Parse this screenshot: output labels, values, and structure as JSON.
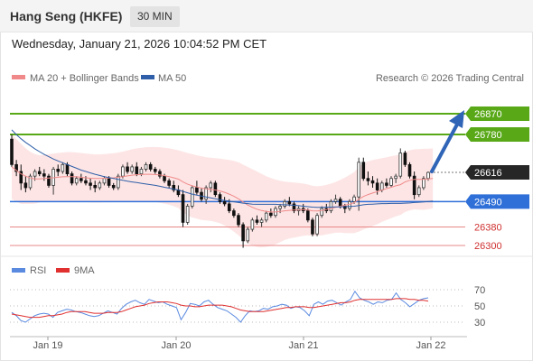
{
  "header": {
    "title": "Hang Seng (HKFE)",
    "interval": "30 MIN"
  },
  "datetime": "Wednesday, January 21, 2026 10:04:52 PM CET",
  "colors": {
    "up": "#3a3a3a",
    "down": "#111111",
    "bb": "#fde0e0",
    "ma20": "#f08a8a",
    "ma50": "#2f5fa8",
    "resistance": "#58a818",
    "support": "#2f6fd8",
    "minor_support": "#e88888",
    "arrow": "#2f64b6",
    "rsi": "#5a8ae0",
    "rsi_ma": "#e03030"
  },
  "legend": {
    "bb_label": "MA 20 + Bollinger Bands",
    "ma50_label": "MA 50",
    "credit": "Research © 2026 Trading Central",
    "rsi_label": "RSI",
    "rsi_ma_label": "9MA"
  },
  "chart_data": [
    {
      "type": "candlestick",
      "ylim": [
        26260,
        26900
      ],
      "x_ticks": [
        "Jan 19",
        "Jan 20",
        "Jan 21",
        "Jan 22"
      ],
      "levels": [
        {
          "label": "26870",
          "value": 26870,
          "kind": "resistance"
        },
        {
          "label": "26780",
          "value": 26780,
          "kind": "resistance"
        },
        {
          "label": "26616",
          "value": 26616,
          "kind": "last"
        },
        {
          "label": "26490",
          "value": 26490,
          "kind": "support"
        },
        {
          "label": "26380",
          "value": 26380,
          "kind": "minor_support"
        },
        {
          "label": "26300",
          "value": 26300,
          "kind": "minor_support"
        }
      ],
      "candles": [
        [
          26760,
          26780,
          26640,
          26650
        ],
        [
          26650,
          26670,
          26600,
          26620
        ],
        [
          26620,
          26650,
          26540,
          26570
        ],
        [
          26570,
          26600,
          26530,
          26550
        ],
        [
          26550,
          26610,
          26540,
          26600
        ],
        [
          26600,
          26630,
          26580,
          26620
        ],
        [
          26620,
          26640,
          26600,
          26610
        ],
        [
          26610,
          26630,
          26580,
          26600
        ],
        [
          26600,
          26610,
          26550,
          26560
        ],
        [
          26560,
          26640,
          26520,
          26630
        ],
        [
          26630,
          26650,
          26600,
          26620
        ],
        [
          26620,
          26660,
          26610,
          26650
        ],
        [
          26650,
          26660,
          26600,
          26610
        ],
        [
          26610,
          26620,
          26560,
          26570
        ],
        [
          26570,
          26600,
          26560,
          26590
        ],
        [
          26590,
          26610,
          26570,
          26580
        ],
        [
          26580,
          26600,
          26560,
          26570
        ],
        [
          26570,
          26590,
          26540,
          26560
        ],
        [
          26560,
          26580,
          26530,
          26550
        ],
        [
          26550,
          26580,
          26540,
          26570
        ],
        [
          26570,
          26600,
          26560,
          26590
        ],
        [
          26590,
          26600,
          26550,
          26560
        ],
        [
          26560,
          26570,
          26540,
          26550
        ],
        [
          26550,
          26610,
          26540,
          26600
        ],
        [
          26600,
          26650,
          26590,
          26640
        ],
        [
          26640,
          26660,
          26610,
          26620
        ],
        [
          26620,
          26650,
          26610,
          26640
        ],
        [
          26640,
          26660,
          26600,
          26610
        ],
        [
          26610,
          26640,
          26600,
          26630
        ],
        [
          26630,
          26660,
          26620,
          26650
        ],
        [
          26650,
          26660,
          26620,
          26630
        ],
        [
          26630,
          26640,
          26610,
          26620
        ],
        [
          26620,
          26630,
          26590,
          26600
        ],
        [
          26600,
          26610,
          26570,
          26580
        ],
        [
          26580,
          26590,
          26550,
          26560
        ],
        [
          26560,
          26580,
          26530,
          26540
        ],
        [
          26540,
          26560,
          26510,
          26520
        ],
        [
          26520,
          26540,
          26380,
          26400
        ],
        [
          26400,
          26480,
          26390,
          26470
        ],
        [
          26470,
          26560,
          26460,
          26550
        ],
        [
          26550,
          26580,
          26520,
          26530
        ],
        [
          26530,
          26550,
          26490,
          26500
        ],
        [
          26500,
          26560,
          26480,
          26550
        ],
        [
          26550,
          26580,
          26530,
          26570
        ],
        [
          26570,
          26580,
          26510,
          26520
        ],
        [
          26520,
          26530,
          26480,
          26490
        ],
        [
          26490,
          26510,
          26470,
          26480
        ],
        [
          26480,
          26500,
          26440,
          26450
        ],
        [
          26450,
          26460,
          26420,
          26430
        ],
        [
          26430,
          26440,
          26380,
          26390
        ],
        [
          26390,
          26400,
          26290,
          26320
        ],
        [
          26320,
          26380,
          26310,
          26370
        ],
        [
          26370,
          26420,
          26360,
          26410
        ],
        [
          26410,
          26430,
          26390,
          26400
        ],
        [
          26400,
          26420,
          26380,
          26410
        ],
        [
          26410,
          26450,
          26400,
          26440
        ],
        [
          26440,
          26460,
          26420,
          26430
        ],
        [
          26430,
          26470,
          26420,
          26460
        ],
        [
          26460,
          26480,
          26440,
          26470
        ],
        [
          26470,
          26500,
          26460,
          26490
        ],
        [
          26490,
          26510,
          26470,
          26480
        ],
        [
          26480,
          26490,
          26440,
          26450
        ],
        [
          26450,
          26470,
          26430,
          26460
        ],
        [
          26460,
          26480,
          26440,
          26450
        ],
        [
          26450,
          26460,
          26400,
          26410
        ],
        [
          26410,
          26420,
          26340,
          26350
        ],
        [
          26350,
          26440,
          26340,
          26430
        ],
        [
          26430,
          26470,
          26420,
          26460
        ],
        [
          26460,
          26480,
          26440,
          26450
        ],
        [
          26450,
          26500,
          26440,
          26490
        ],
        [
          26490,
          26520,
          26480,
          26500
        ],
        [
          26500,
          26510,
          26460,
          26470
        ],
        [
          26470,
          26480,
          26440,
          26460
        ],
        [
          26460,
          26500,
          26450,
          26490
        ],
        [
          26490,
          26520,
          26480,
          26510
        ],
        [
          26510,
          26680,
          26450,
          26660
        ],
        [
          26660,
          26680,
          26580,
          26590
        ],
        [
          26590,
          26620,
          26560,
          26580
        ],
        [
          26580,
          26600,
          26550,
          26570
        ],
        [
          26570,
          26590,
          26520,
          26540
        ],
        [
          26540,
          26580,
          26530,
          26570
        ],
        [
          26570,
          26590,
          26550,
          26560
        ],
        [
          26560,
          26600,
          26550,
          26590
        ],
        [
          26590,
          26610,
          26570,
          26600
        ],
        [
          26600,
          26720,
          26590,
          26700
        ],
        [
          26700,
          26710,
          26640,
          26650
        ],
        [
          26650,
          26660,
          26590,
          26600
        ],
        [
          26600,
          26620,
          26500,
          26520
        ],
        [
          26520,
          26560,
          26510,
          26550
        ],
        [
          26550,
          26600,
          26540,
          26590
        ],
        [
          26590,
          26620,
          26580,
          26616
        ]
      ],
      "bollinger_mid": [
        26640,
        26625,
        26610,
        26600,
        26592,
        26588,
        26588,
        26590,
        26592,
        26593,
        26595,
        26597,
        26598,
        26598,
        26597,
        26595,
        26593,
        26591,
        26590,
        26590,
        26591,
        26592,
        26593,
        26595,
        26598,
        26601,
        26604,
        26606,
        26607,
        26608,
        26608,
        26607,
        26605,
        26602,
        26598,
        26593,
        26587,
        26575,
        26565,
        26558,
        26553,
        26548,
        26545,
        26543,
        26540,
        26536,
        26530,
        26522,
        26513,
        26502,
        26488,
        26475,
        26465,
        26457,
        26451,
        26447,
        26445,
        26445,
        26447,
        26450,
        26452,
        26453,
        26454,
        26455,
        26454,
        26450,
        26449,
        26451,
        26455,
        26460,
        26465,
        26470,
        26474,
        26479,
        26485,
        26500,
        26512,
        26520,
        26527,
        26533,
        26540,
        26546,
        26552,
        26558,
        26563,
        26575,
        26582,
        26586,
        26586,
        26586,
        26588,
        26590
      ],
      "bollinger_upper": [
        26780,
        26760,
        26740,
        26720,
        26705,
        26695,
        26690,
        26692,
        26695,
        26698,
        26700,
        26702,
        26704,
        26704,
        26702,
        26700,
        26698,
        26696,
        26694,
        26694,
        26695,
        26697,
        26699,
        26702,
        26706,
        26711,
        26716,
        26720,
        26723,
        26725,
        26726,
        26726,
        26725,
        26723,
        26720,
        26716,
        26712,
        26706,
        26700,
        26695,
        26690,
        26686,
        26682,
        26680,
        26678,
        26676,
        26673,
        26670,
        26666,
        26660,
        26650,
        26640,
        26630,
        26620,
        26610,
        26600,
        26592,
        26585,
        26580,
        26576,
        26574,
        26572,
        26570,
        26568,
        26564,
        26558,
        26556,
        26558,
        26562,
        26568,
        26575,
        26584,
        26594,
        26605,
        26617,
        26640,
        26655,
        26664,
        26670,
        26674,
        26678,
        26682,
        26686,
        26690,
        26694,
        26705,
        26712,
        26716,
        26717,
        26718,
        26719,
        26720
      ],
      "bollinger_lower": [
        26500,
        26490,
        26480,
        26480,
        26480,
        26481,
        26486,
        26488,
        26489,
        26488,
        26490,
        26492,
        26492,
        26492,
        26492,
        26490,
        26488,
        26486,
        26486,
        26486,
        26487,
        26487,
        26487,
        26488,
        26490,
        26491,
        26492,
        26492,
        26491,
        26491,
        26490,
        26488,
        26485,
        26481,
        26476,
        26470,
        26462,
        26444,
        26430,
        26421,
        26416,
        26410,
        26408,
        26406,
        26402,
        26396,
        26387,
        26374,
        26360,
        26344,
        26326,
        26310,
        26300,
        26294,
        26292,
        26294,
        26298,
        26305,
        26314,
        26324,
        26330,
        26334,
        26338,
        26342,
        26344,
        26342,
        26342,
        26344,
        26348,
        26352,
        26355,
        26356,
        26354,
        26353,
        26353,
        26360,
        26369,
        26376,
        26384,
        26392,
        26402,
        26410,
        26418,
        26426,
        26432,
        26445,
        26452,
        26456,
        26455,
        26454,
        26457,
        26460
      ],
      "ma50": [
        26800,
        26780,
        26762,
        26746,
        26732,
        26718,
        26706,
        26694,
        26684,
        26674,
        26666,
        26658,
        26650,
        26642,
        26634,
        26626,
        26620,
        26614,
        26608,
        26603,
        26598,
        26594,
        26590,
        26586,
        26582,
        26578,
        26575,
        26572,
        26569,
        26566,
        26563,
        26560,
        26556,
        26552,
        26548,
        26544,
        26540,
        26534,
        26528,
        26522,
        26518,
        26514,
        26510,
        26506,
        26502,
        26498,
        26495,
        26492,
        26489,
        26486,
        26483,
        26481,
        26479,
        26478,
        26478,
        26478,
        26478,
        26478,
        26477,
        26476,
        26475,
        26474,
        26472,
        26470,
        26468,
        26466,
        26465,
        26465,
        26466,
        26466,
        26467,
        26467,
        26468,
        26469,
        26470,
        26473,
        26476,
        26478,
        26479,
        26480,
        26481,
        26481,
        26482,
        26482,
        26482,
        26483,
        26484,
        26486,
        26487,
        26488,
        26490,
        26492
      ]
    },
    {
      "type": "line",
      "ylim": [
        15,
        85
      ],
      "y_ticks": [
        "70",
        "50",
        "30"
      ],
      "series": [
        {
          "name": "RSI",
          "values": [
            42,
            38,
            32,
            30,
            34,
            38,
            40,
            41,
            40,
            36,
            42,
            44,
            46,
            45,
            43,
            42,
            40,
            38,
            37,
            38,
            41,
            44,
            42,
            40,
            47,
            52,
            55,
            57,
            54,
            52,
            58,
            56,
            54,
            55,
            52,
            50,
            48,
            33,
            42,
            53,
            52,
            50,
            55,
            57,
            52,
            48,
            46,
            44,
            40,
            36,
            30,
            38,
            44,
            43,
            44,
            47,
            46,
            49,
            50,
            52,
            51,
            47,
            49,
            48,
            44,
            38,
            52,
            55,
            52,
            56,
            57,
            54,
            51,
            55,
            58,
            68,
            60,
            57,
            55,
            52,
            55,
            54,
            57,
            58,
            66,
            58,
            54,
            49,
            53,
            57,
            59,
            60
          ]
        },
        {
          "name": "9MA",
          "values": [
            40,
            39,
            38,
            37,
            36,
            36,
            36,
            37,
            38,
            38,
            39,
            40,
            42,
            43,
            43,
            43,
            43,
            42,
            41,
            41,
            41,
            42,
            42,
            42,
            43,
            45,
            47,
            49,
            50,
            51,
            53,
            54,
            55,
            55,
            55,
            54,
            53,
            51,
            50,
            50,
            49,
            49,
            50,
            51,
            51,
            51,
            51,
            50,
            49,
            47,
            45,
            44,
            43,
            43,
            43,
            43,
            44,
            45,
            46,
            47,
            48,
            48,
            49,
            49,
            49,
            48,
            48,
            49,
            50,
            51,
            52,
            53,
            54,
            54,
            55,
            57,
            58,
            58,
            58,
            58,
            58,
            58,
            58,
            58,
            59,
            59,
            59,
            58,
            58,
            57,
            57,
            56
          ]
        }
      ]
    }
  ]
}
